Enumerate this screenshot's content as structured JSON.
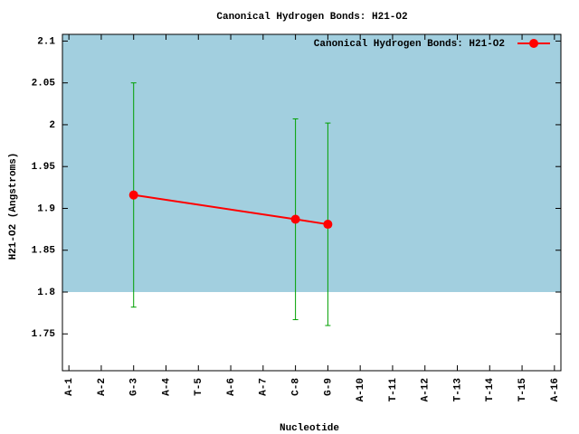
{
  "chart_data": {
    "type": "line",
    "title": "Canonical Hydrogen Bonds: H21-O2",
    "x_label": "Nucleotide",
    "y_label": "H21-O2 (Angstroms)",
    "xlim": [
      0.8,
      16.2
    ],
    "ylim": [
      1.706,
      2.108
    ],
    "xticks": [
      {
        "value": 1,
        "label": "A-1"
      },
      {
        "value": 2,
        "label": "A-2"
      },
      {
        "value": 3,
        "label": "G-3"
      },
      {
        "value": 4,
        "label": "A-4"
      },
      {
        "value": 5,
        "label": "T-5"
      },
      {
        "value": 6,
        "label": "A-6"
      },
      {
        "value": 7,
        "label": "A-7"
      },
      {
        "value": 8,
        "label": "C-8"
      },
      {
        "value": 9,
        "label": "G-9"
      },
      {
        "value": 10,
        "label": "A-10"
      },
      {
        "value": 11,
        "label": "T-11"
      },
      {
        "value": 12,
        "label": "A-12"
      },
      {
        "value": 13,
        "label": "T-13"
      },
      {
        "value": 14,
        "label": "T-14"
      },
      {
        "value": 15,
        "label": "T-15"
      },
      {
        "value": 16,
        "label": "A-16"
      }
    ],
    "yticks": [
      {
        "value": 1.75,
        "label": "1.75"
      },
      {
        "value": 1.8,
        "label": "1.8"
      },
      {
        "value": 1.85,
        "label": "1.85"
      },
      {
        "value": 1.9,
        "label": "1.9"
      },
      {
        "value": 1.95,
        "label": "1.95"
      },
      2,
      {
        "value": 2.05,
        "label": "2.05"
      },
      {
        "value": 2.1,
        "label": "2.1"
      }
    ],
    "band": {
      "from": 1.8,
      "to": 2.108,
      "color": "#a2cfdf"
    },
    "legend_position": "top-right",
    "series": [
      {
        "name": "Canonical Hydrogen Bonds: H21-O2",
        "color": "#ff0000",
        "error_color": "#00a000",
        "x": [
          3,
          8,
          9
        ],
        "values": [
          1.916,
          1.887,
          1.881
        ],
        "errors": [
          0.134,
          0.12,
          0.121
        ]
      }
    ]
  }
}
